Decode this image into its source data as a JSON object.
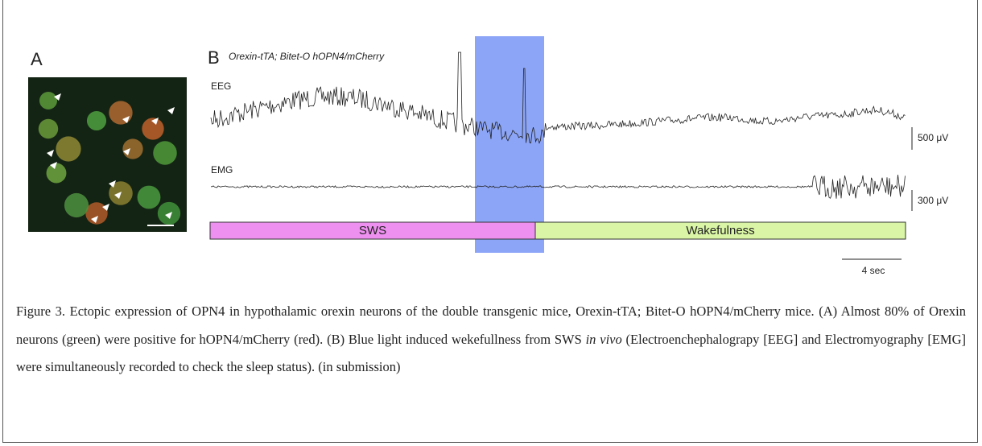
{
  "panel_a": {
    "label": "A"
  },
  "panel_b": {
    "label": "B",
    "subtitle": "Orexin-tTA; Bitet-O hOPN4/mCherry",
    "eeg_label": "EEG",
    "emg_label": "EMG",
    "eeg_scale": "500 μV",
    "emg_scale": "300 μV",
    "time_scale": "4 sec",
    "states": [
      "SWS",
      "Wakefulness"
    ]
  },
  "caption": {
    "before": "Figure 3. Ectopic expression of OPN4 in hypothalamic orexin neurons of the double transgenic mice, Orexin-tTA; Bitet-O hOPN4/mCherry mice. (A) Almost 80% of Orexin neurons (green) were positive for hOPN4/mCherry (red). (B) Blue light induced wekefullness from SWS ",
    "italic": "in vivo",
    "after": " (Electroenchephalograpy [EEG] and Electromyography [EMG] were simultaneously recorded to check the sleep status). (in submission)"
  }
}
